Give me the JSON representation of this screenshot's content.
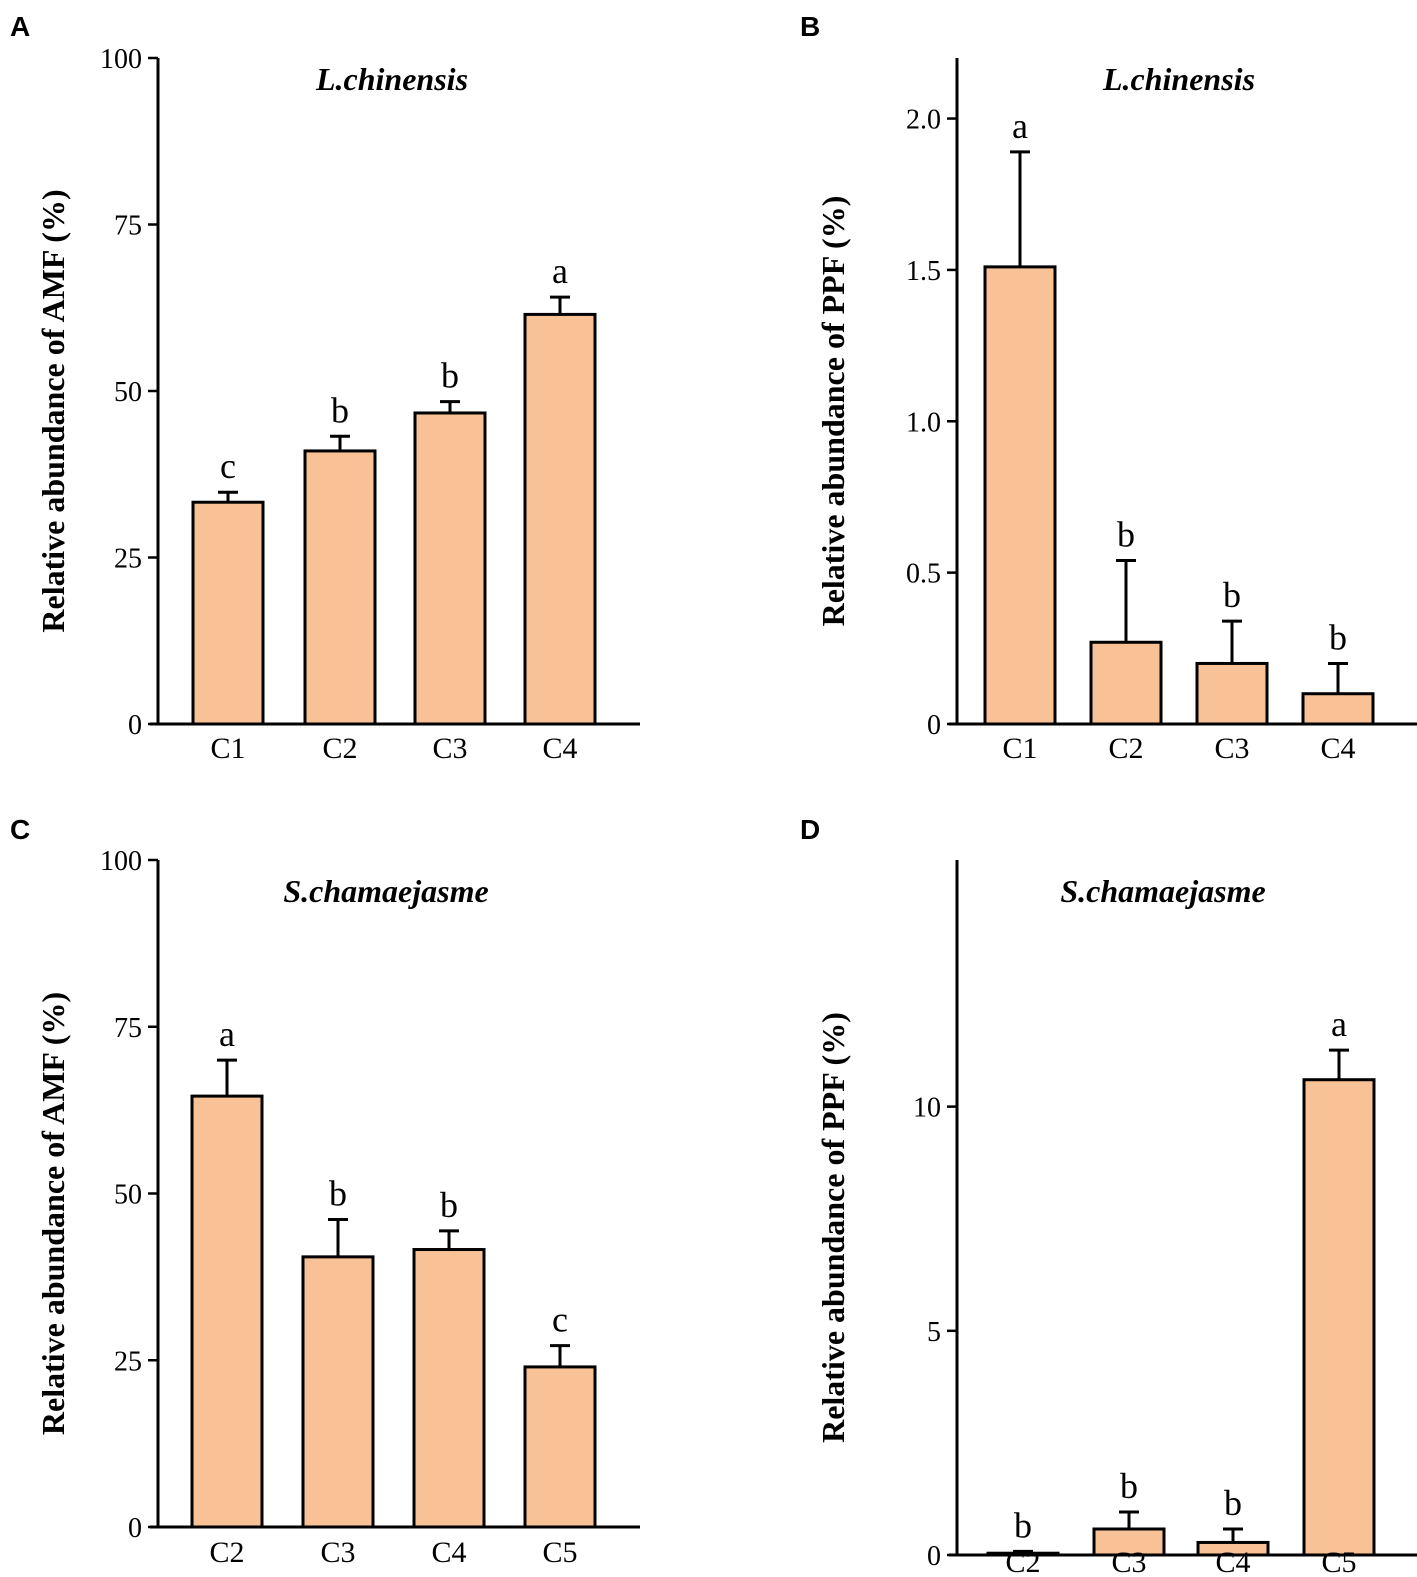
{
  "colors": {
    "bar_fill": "#f8c196",
    "stroke": "#000000"
  },
  "chart_data": [
    {
      "panel": "A",
      "type": "bar",
      "title": "L.chinensis",
      "ylabel": "Relative abundance of AMF (%)",
      "xlabel": "",
      "ylim": [
        0,
        100
      ],
      "yticks": [
        0,
        25,
        50,
        75,
        100
      ],
      "ytick_labels": [
        "0",
        "25",
        "50",
        "75",
        "100"
      ],
      "categories": [
        "C1",
        "C2",
        "C3",
        "C4"
      ],
      "values": [
        33.3,
        41.0,
        46.7,
        61.5
      ],
      "errors": [
        1.5,
        2.2,
        1.7,
        2.6
      ],
      "sig_labels": [
        "c",
        "b",
        "b",
        "a"
      ]
    },
    {
      "panel": "B",
      "type": "bar",
      "title": "L.chinensis",
      "ylabel": "Relative abundance of PPF (%)",
      "xlabel": "",
      "ylim": [
        0,
        2.2
      ],
      "yticks": [
        0,
        0.5,
        1.0,
        1.5,
        2.0
      ],
      "ytick_labels": [
        "0",
        "0.5",
        "1.0",
        "1.5",
        "2.0"
      ],
      "categories": [
        "C1",
        "C2",
        "C3",
        "C4"
      ],
      "values": [
        1.51,
        0.27,
        0.2,
        0.1
      ],
      "errors": [
        0.38,
        0.27,
        0.14,
        0.1
      ],
      "sig_labels": [
        "a",
        "b",
        "b",
        "b"
      ]
    },
    {
      "panel": "C",
      "type": "bar",
      "title": "S.chamaejasme",
      "ylabel": "Relative abundance of AMF (%)",
      "xlabel": "",
      "ylim": [
        0,
        100
      ],
      "yticks": [
        0,
        25,
        50,
        75,
        100
      ],
      "ytick_labels": [
        "0",
        "25",
        "50",
        "75",
        "100"
      ],
      "categories": [
        "C2",
        "C3",
        "C4",
        "C5"
      ],
      "values": [
        64.6,
        40.5,
        41.6,
        24.0
      ],
      "errors": [
        5.4,
        5.6,
        2.8,
        3.2
      ],
      "sig_labels": [
        "a",
        "b",
        "b",
        "c"
      ]
    },
    {
      "panel": "D",
      "type": "bar",
      "title": "S.chamaejasme",
      "ylabel": "Relative abundance of PPF (%)",
      "xlabel": "",
      "ylim": [
        0,
        15.5
      ],
      "yticks": [
        0,
        5,
        10
      ],
      "ytick_labels": [
        "0",
        "5",
        "10"
      ],
      "categories": [
        "C2",
        "C3",
        "C4",
        "C5"
      ],
      "values": [
        0.04,
        0.58,
        0.28,
        10.6
      ],
      "errors": [
        0.04,
        0.38,
        0.3,
        0.66
      ],
      "sig_labels": [
        "b",
        "b",
        "b",
        "a"
      ]
    }
  ]
}
